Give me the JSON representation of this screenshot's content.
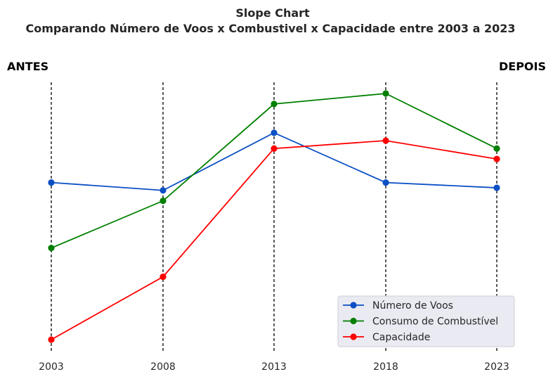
{
  "chart_data": {
    "type": "line",
    "title": "Slope Chart",
    "subtitle": "Comparando Número de Voos x Combustivel x Capacidade entre 2003 a 2023",
    "left_label": "ANTES",
    "right_label": "DEPOIS",
    "categories": [
      "2003",
      "2008",
      "2013",
      "2018",
      "2023"
    ],
    "series": [
      {
        "name": "Número de Voos",
        "color": "#0b4fc4",
        "values": [
          0.6,
          0.57,
          0.79,
          0.6,
          0.58
        ]
      },
      {
        "name": "Consumo de Combustível",
        "color": "#008000",
        "values": [
          0.35,
          0.53,
          0.9,
          0.94,
          0.73
        ]
      },
      {
        "name": "Capacidade",
        "color": "#ff0000",
        "values": [
          0.0,
          0.24,
          0.73,
          0.76,
          0.69
        ]
      }
    ],
    "ylim": [
      0,
      0.94
    ],
    "y_ticks_visible": false,
    "vertical_reference_lines": "dashed",
    "grid": false,
    "legend_position": "lower-right",
    "legend_bg": "#eaeaf2"
  }
}
